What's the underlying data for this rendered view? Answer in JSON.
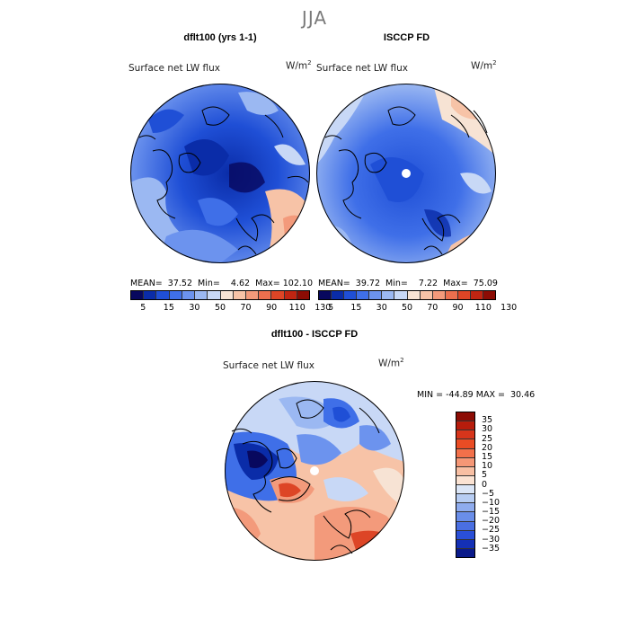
{
  "page": {
    "season_title": "JJA"
  },
  "panels": {
    "model": {
      "title": "dflt100 (yrs 1-1)",
      "variable": "Surface net LW flux",
      "units_base": "W/m",
      "units_exp": "2",
      "stats": "MEAN=  37.52  Min=    4.62  Max= 102.10"
    },
    "obs": {
      "title": "ISCCP FD",
      "variable": "Surface net LW flux",
      "units_base": "W/m",
      "units_exp": "2",
      "stats": "MEAN=  39.72  Min=    7.22  Max=  75.09"
    },
    "diff": {
      "title": "dflt100 - ISCCP FD",
      "variable": "Surface net LW flux",
      "units_base": "W/m",
      "units_exp": "2",
      "stats": "MIN = -44.89 MAX =  30.46"
    }
  },
  "colorbars": {
    "abs_ticks": [
      "5",
      "15",
      "30",
      "50",
      "70",
      "90",
      "110",
      "130"
    ],
    "abs_colors": [
      "#08085e",
      "#0a2ca8",
      "#1f4fd6",
      "#3f6fe8",
      "#6c93ee",
      "#9bb8f2",
      "#c8d8f6",
      "#f7e3d4",
      "#f7c3a7",
      "#f39a7b",
      "#ec6f4e",
      "#dd4526",
      "#c02512",
      "#8c0c04"
    ],
    "diff_ticks": [
      "35",
      "30",
      "25",
      "20",
      "15",
      "10",
      "5",
      "0",
      "−5",
      "−10",
      "−15",
      "−20",
      "−25",
      "−30",
      "−35"
    ],
    "diff_colors": [
      "#8c0c04",
      "#b71c0c",
      "#d7351b",
      "#ea4c24",
      "#f2704a",
      "#f59776",
      "#f8bfa3",
      "#fbe3d3",
      "#dbe6f7",
      "#b7cdf3",
      "#8facee",
      "#6a8ee9",
      "#4a6fe2",
      "#2a4fd7",
      "#1430b5",
      "#0a1a8a"
    ]
  },
  "chart_data": {
    "type": "heatmap",
    "projection": "north polar stereographic",
    "maps": [
      {
        "name": "dflt100 (yrs 1-1)",
        "mean": 37.52,
        "min": 4.62,
        "max": 102.1,
        "levels": [
          5,
          15,
          30,
          50,
          70,
          90,
          110,
          130
        ]
      },
      {
        "name": "ISCCP FD",
        "mean": 39.72,
        "min": 7.22,
        "max": 75.09,
        "levels": [
          5,
          15,
          30,
          50,
          70,
          90,
          110,
          130
        ]
      },
      {
        "name": "dflt100 - ISCCP FD",
        "min": -44.89,
        "max": 30.46,
        "levels": [
          -35,
          -30,
          -25,
          -20,
          -15,
          -10,
          -5,
          0,
          5,
          10,
          15,
          20,
          25,
          30,
          35
        ]
      }
    ]
  }
}
